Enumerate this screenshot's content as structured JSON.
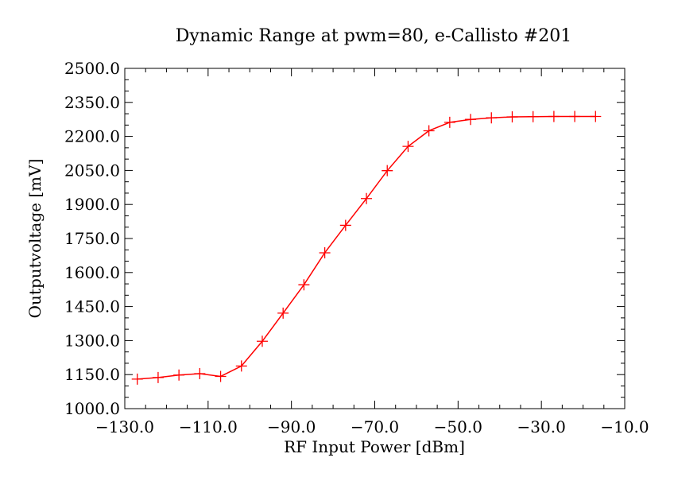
{
  "chart_data": {
    "type": "line",
    "title": "Dynamic Range at pwm=80, e-Callisto #201",
    "xlabel": "RF Input Power [dBm]",
    "ylabel": "Outputvoltage [mV]",
    "xlim": [
      -130.0,
      -10.0
    ],
    "ylim": [
      1000.0,
      2500.0
    ],
    "x_ticks": [
      -130.0,
      -110.0,
      -90.0,
      -70.0,
      -50.0,
      -30.0,
      -10.0
    ],
    "x_tick_labels": [
      "−130.0",
      "−110.0",
      "−90.0",
      "−70.0",
      "−50.0",
      "−30.0",
      "−10.0"
    ],
    "y_ticks": [
      1000.0,
      1150.0,
      1300.0,
      1450.0,
      1600.0,
      1750.0,
      1900.0,
      2050.0,
      2200.0,
      2350.0,
      2500.0
    ],
    "y_tick_labels": [
      "1000.0",
      "1150.0",
      "1300.0",
      "1450.0",
      "1600.0",
      "1750.0",
      "1900.0",
      "2050.0",
      "2200.0",
      "2350.0",
      "2500.0"
    ],
    "grid": false,
    "marker": "plus",
    "color": "#ff0000",
    "series": [
      {
        "x": [
          -127,
          -122,
          -117,
          -112,
          -107,
          -102,
          -97,
          -92,
          -87,
          -82,
          -77,
          -72,
          -67,
          -62,
          -57,
          -52,
          -47,
          -42,
          -37,
          -32,
          -27,
          -22,
          -17
        ],
        "y": [
          1130,
          1137,
          1148,
          1154,
          1142,
          1188,
          1297,
          1421,
          1546,
          1687,
          1808,
          1926,
          2049,
          2156,
          2225,
          2262,
          2275,
          2282,
          2286,
          2287,
          2288,
          2288,
          2288
        ]
      }
    ]
  }
}
